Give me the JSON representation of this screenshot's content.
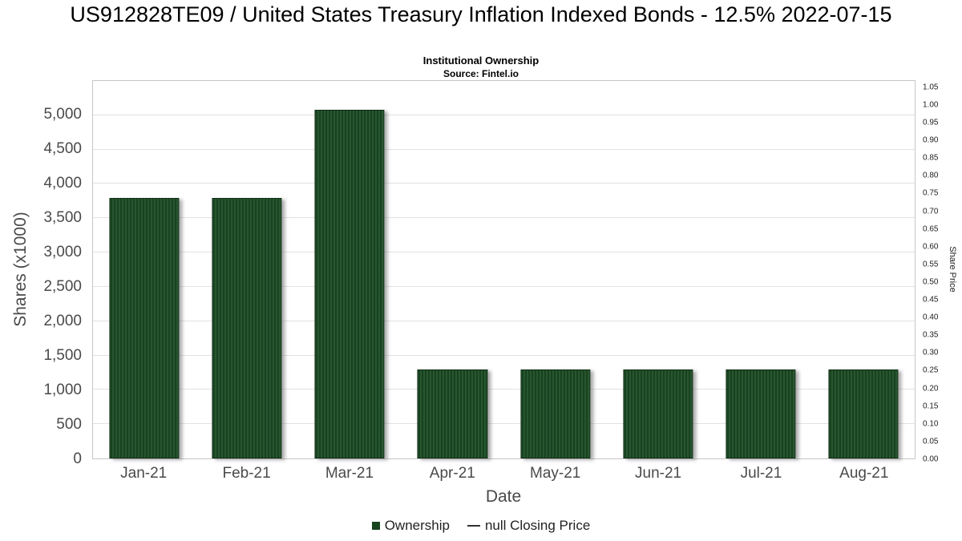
{
  "header": {
    "title": "US912828TE09 / United States Treasury Inflation Indexed Bonds - 12.5% 2022-07-15",
    "subtitle": "Institutional Ownership",
    "source": "Source: Fintel.io"
  },
  "chart_data": {
    "type": "bar",
    "title": "US912828TE09 / United States Treasury Inflation Indexed Bonds - 12.5% 2022-07-15",
    "subtitle": "Institutional Ownership",
    "source": "Source: Fintel.io",
    "xlabel": "Date",
    "ylabel": "Shares (x1000)",
    "y2label": "Share Price",
    "categories": [
      "Jan-21",
      "Feb-21",
      "Mar-21",
      "Apr-21",
      "May-21",
      "Jun-21",
      "Jul-21",
      "Aug-21"
    ],
    "series": [
      {
        "name": "Ownership",
        "values": [
          3800,
          3800,
          5080,
          1300,
          1300,
          1300,
          1300,
          1300
        ]
      }
    ],
    "ylim": [
      0,
      5500
    ],
    "yticks": [
      0,
      500,
      1000,
      1500,
      2000,
      2500,
      3000,
      3500,
      4000,
      4500,
      5000
    ],
    "ytick_labels": [
      "0",
      "500",
      "1,000",
      "1,500",
      "2,000",
      "2,500",
      "3,000",
      "3,500",
      "4,000",
      "4,500",
      "5,000"
    ],
    "y2lim": [
      0,
      1.07
    ],
    "y2ticks": [
      0.0,
      0.05,
      0.1,
      0.15,
      0.2,
      0.25,
      0.3,
      0.35,
      0.4,
      0.45,
      0.5,
      0.55,
      0.6,
      0.65,
      0.7,
      0.75,
      0.8,
      0.85,
      0.9,
      0.95,
      1.0,
      1.05
    ],
    "grid": true,
    "legend_position": "bottom",
    "bar_color": "#17431f",
    "bar_hatch_color": "#3a6a41",
    "legend": [
      {
        "label": "Ownership",
        "marker": "square"
      },
      {
        "label": "null Closing Price",
        "marker": "line"
      }
    ]
  }
}
